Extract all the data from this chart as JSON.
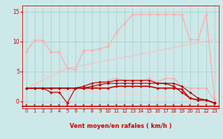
{
  "background_color": "#cce8e8",
  "grid_color": "#aacccc",
  "line_color_dark": "#cc0000",
  "xlabel": "Vent moyen/en rafales ( km/h )",
  "xlabel_color": "#cc0000",
  "tick_color": "#cc0000",
  "xlim": [
    -0.5,
    23.5
  ],
  "ylim": [
    -1.2,
    16
  ],
  "yticks": [
    0,
    5,
    10,
    15
  ],
  "xticks": [
    0,
    1,
    2,
    3,
    4,
    5,
    6,
    7,
    8,
    9,
    10,
    11,
    12,
    13,
    14,
    15,
    16,
    17,
    18,
    19,
    20,
    21,
    22,
    23
  ],
  "series": [
    {
      "name": "light_top",
      "x": [
        0,
        1,
        2,
        3,
        4,
        5,
        6,
        7,
        8,
        9,
        10,
        11,
        12,
        13,
        14,
        15,
        16,
        17,
        18,
        19,
        20,
        21,
        22,
        23
      ],
      "y": [
        8.3,
        10.2,
        10.2,
        8.2,
        8.2,
        5.5,
        5.3,
        8.5,
        8.5,
        8.8,
        9.2,
        11.5,
        13.0,
        14.5,
        14.5,
        14.5,
        14.5,
        14.5,
        14.5,
        14.5,
        10.3,
        10.3,
        14.5,
        0.4
      ],
      "color": "#ffaaaa",
      "lw": 0.9,
      "marker": "D",
      "ms": 2.0
    },
    {
      "name": "light_mid_upper",
      "x": [
        0,
        1,
        2,
        3,
        4,
        5,
        6,
        7,
        8,
        9,
        10,
        11,
        12,
        13,
        14,
        15,
        16,
        17,
        18,
        19,
        20,
        21,
        22,
        23
      ],
      "y": [
        2.2,
        2.2,
        2.2,
        2.2,
        2.2,
        2.2,
        2.2,
        2.2,
        2.2,
        2.6,
        3.5,
        3.8,
        3.5,
        3.3,
        3.3,
        3.8,
        3.2,
        3.8,
        3.8,
        2.5,
        2.2,
        2.2,
        2.2,
        0.2
      ],
      "color": "#ffaaaa",
      "lw": 0.9,
      "marker": "D",
      "ms": 2.0
    },
    {
      "name": "dark_jagged",
      "x": [
        0,
        1,
        2,
        3,
        4,
        5,
        6,
        7,
        8,
        9,
        10,
        11,
        12,
        13,
        14,
        15,
        16,
        17,
        18,
        19,
        20,
        21,
        22,
        23
      ],
      "y": [
        2.2,
        2.2,
        2.2,
        1.5,
        1.5,
        -0.3,
        2.2,
        2.5,
        3.0,
        3.2,
        3.2,
        3.5,
        3.5,
        3.5,
        3.5,
        3.5,
        3.0,
        3.0,
        2.5,
        1.5,
        0.5,
        0.2,
        0.2,
        -0.3
      ],
      "color": "#cc0000",
      "lw": 0.9,
      "marker": "D",
      "ms": 2.0
    },
    {
      "name": "dark_flat",
      "x": [
        0,
        1,
        2,
        3,
        4,
        5,
        6,
        7,
        8,
        9,
        10,
        11,
        12,
        13,
        14,
        15,
        16,
        17,
        18,
        19,
        20,
        21,
        22,
        23
      ],
      "y": [
        2.2,
        2.2,
        2.2,
        2.2,
        2.2,
        2.2,
        2.2,
        2.2,
        2.2,
        2.2,
        2.2,
        2.5,
        2.5,
        2.5,
        2.5,
        2.5,
        2.2,
        2.2,
        2.2,
        2.0,
        0.5,
        0.2,
        0.2,
        -0.3
      ],
      "color": "#cc0000",
      "lw": 1.2,
      "marker": "D",
      "ms": 2.0
    },
    {
      "name": "dark_medium",
      "x": [
        0,
        1,
        2,
        3,
        4,
        5,
        6,
        7,
        8,
        9,
        10,
        11,
        12,
        13,
        14,
        15,
        16,
        17,
        18,
        19,
        20,
        21,
        22,
        23
      ],
      "y": [
        2.2,
        2.2,
        2.2,
        2.2,
        2.2,
        2.2,
        2.2,
        2.2,
        2.5,
        2.8,
        3.0,
        3.0,
        3.0,
        3.0,
        3.0,
        3.0,
        3.0,
        3.0,
        3.0,
        2.5,
        1.5,
        0.5,
        0.2,
        -0.3
      ],
      "color": "#990000",
      "lw": 0.8,
      "marker": "D",
      "ms": 1.8
    },
    {
      "name": "light_diagonal_upper",
      "x": [
        0,
        5,
        23
      ],
      "y": [
        2.2,
        5.5,
        10.3
      ],
      "color": "#ffbbbb",
      "lw": 0.8,
      "marker": null,
      "ms": 0
    },
    {
      "name": "light_diagonal_lower",
      "x": [
        0,
        23
      ],
      "y": [
        2.2,
        0.2
      ],
      "color": "#ffcccc",
      "lw": 0.8,
      "marker": null,
      "ms": 0
    }
  ]
}
